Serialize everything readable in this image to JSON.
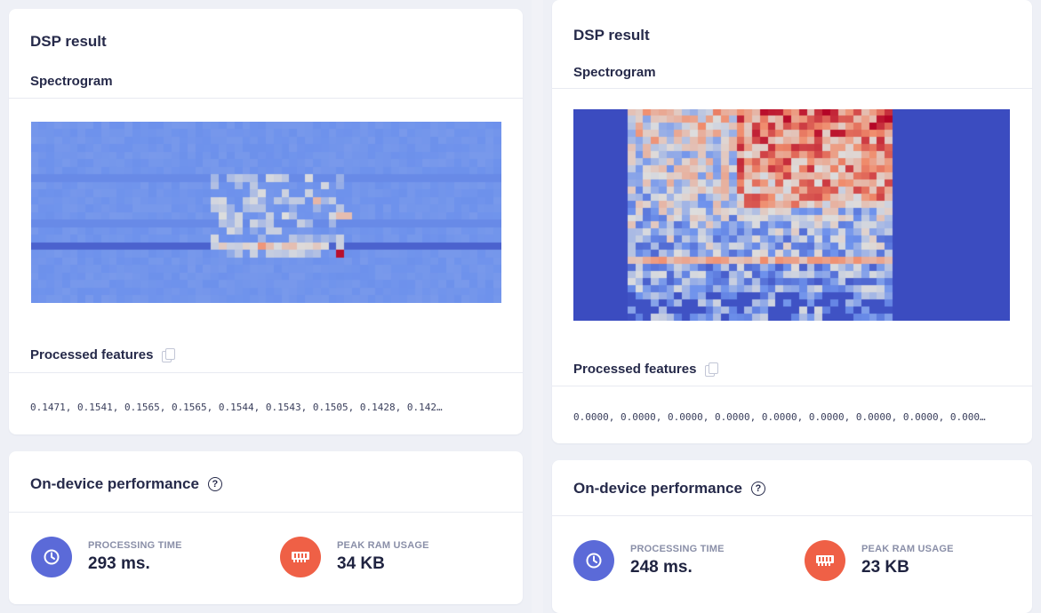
{
  "panels": [
    {
      "dsp_title": "DSP result",
      "spectrogram_label": "Spectrogram",
      "features_label": "Processed features",
      "features_text": "0.1471, 0.1541, 0.1565, 0.1565, 0.1544, 0.1543, 0.1505, 0.1428, 0.142…",
      "performance_title": "On-device performance",
      "processing_time_label": "PROCESSING TIME",
      "processing_time_value": "293 ms.",
      "peak_ram_label": "PEAK RAM USAGE",
      "peak_ram_value": "34 KB",
      "spectrogram_style": "quiet"
    },
    {
      "dsp_title": "DSP result",
      "spectrogram_label": "Spectrogram",
      "features_label": "Processed features",
      "features_text": "0.0000, 0.0000, 0.0000, 0.0000, 0.0000, 0.0000, 0.0000, 0.0000, 0.000…",
      "performance_title": "On-device performance",
      "processing_time_label": "PROCESSING TIME",
      "processing_time_value": "248 ms.",
      "peak_ram_label": "PEAK RAM USAGE",
      "peak_ram_value": "23 KB",
      "spectrogram_style": "loud"
    }
  ],
  "icons": {
    "clock": "clock-icon",
    "ram": "memory-chip-icon",
    "copy": "copy-icon",
    "help": "help-circle-icon"
  },
  "colors": {
    "time_icon_bg": "#5b6ad8",
    "ram_icon_bg": "#ef6046",
    "spectro_low": "#3b4cc0",
    "spectro_high": "#b40426"
  }
}
